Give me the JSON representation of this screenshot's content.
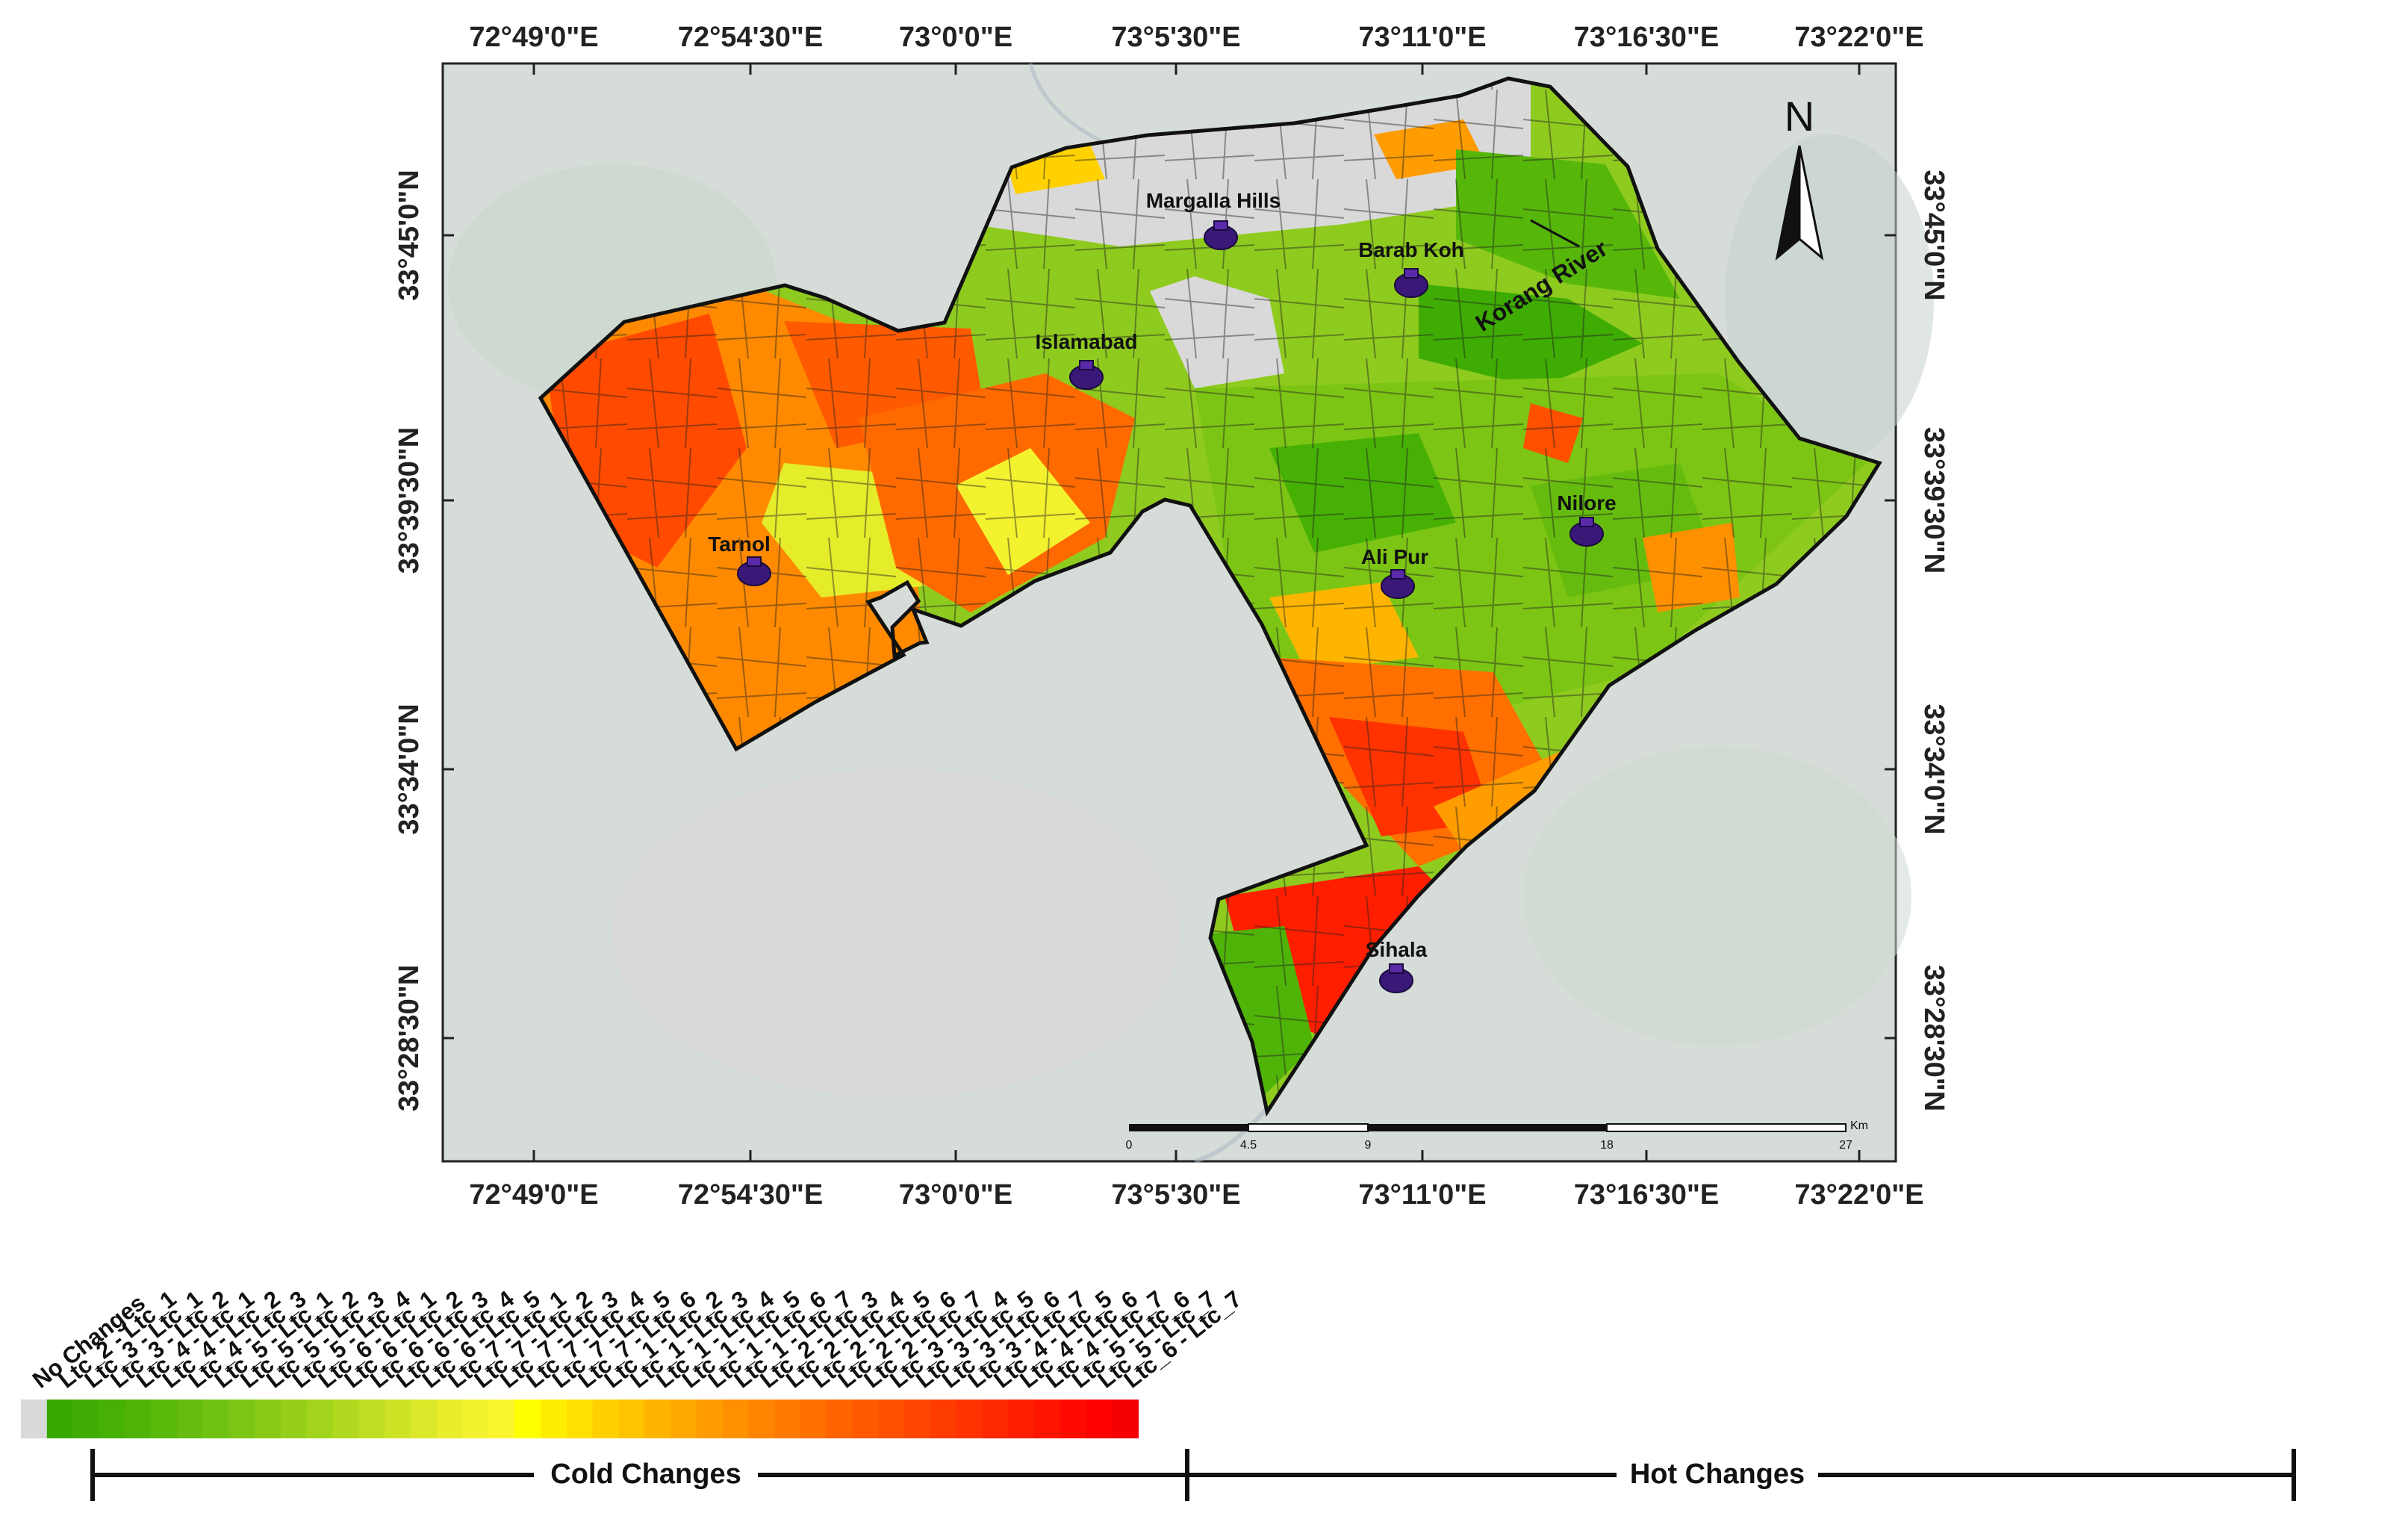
{
  "map": {
    "lon_ticks": [
      "72°49'0\"E",
      "72°54'30\"E",
      "73°0'0\"E",
      "73°5'30\"E",
      "73°11'0\"E",
      "73°16'30\"E",
      "73°22'0\"E"
    ],
    "lat_ticks": [
      "33°45'0\"N",
      "33°39'30\"N",
      "33°34'0\"N",
      "33°28'30\"N"
    ],
    "north_label": "N",
    "river_label": "Korang River",
    "places": [
      {
        "name": "Margalla Hills"
      },
      {
        "name": "Barab Koh"
      },
      {
        "name": "Islamabad"
      },
      {
        "name": "Tarnol"
      },
      {
        "name": "Nilore"
      },
      {
        "name": "Ali Pur"
      },
      {
        "name": "Sihala"
      }
    ],
    "scale_bar": {
      "unit": "Km",
      "ticks": [
        "0",
        "4.5",
        "9",
        "18",
        "27"
      ]
    }
  },
  "legend": {
    "categories": [
      "No Changes",
      "Ltc_2 - Ltc_1",
      "Ltc_3 - Ltc_1",
      "Ltc_3 - Ltc_2",
      "Ltc_4 - Ltc_1",
      "Ltc_4 - Ltc_2",
      "Ltc_4 - Ltc_3",
      "Ltc_5 - Ltc_1",
      "Ltc_5 - Ltc_2",
      "Ltc_5 - Ltc_3",
      "Ltc_5 - Ltc_4",
      "Ltc_6 - Ltc_1",
      "Ltc_6 - Ltc_2",
      "Ltc_6 - Ltc_3",
      "Ltc_6 - Ltc_4",
      "Ltc_6 - Ltc_5",
      "Ltc_7 - Ltc_1",
      "Ltc_7 - Ltc_2",
      "Ltc_7 - Ltc_3",
      "Ltc_7 - Ltc_4",
      "Ltc_7 - Ltc_5",
      "Ltc_7 - Ltc_6",
      "Ltc_1 - Ltc_2",
      "Ltc_1 - Ltc_3",
      "Ltc_1 - Ltc_4",
      "Ltc_1 - Ltc_5",
      "Ltc_1 - Ltc_6",
      "Ltc_1 - Ltc_7",
      "Ltc_2 - Ltc_3",
      "Ltc_2 - Ltc_4",
      "Ltc_2 - Ltc_5",
      "Ltc_2 - Ltc_6",
      "Ltc_2 - Ltc_7",
      "Ltc_3 - Ltc_4",
      "Ltc_3 - Ltc_5",
      "Ltc_3 - Ltc_6",
      "Ltc_3 - Ltc_7",
      "Ltc_4 - Ltc_5",
      "Ltc_4 - Ltc_6",
      "Ltc_4 - Ltc_7",
      "Ltc_5 - Ltc_6",
      "Ltc_5 - Ltc_7",
      "Ltc_6 - Ltc_7"
    ],
    "colors": [
      "#d9d9d9",
      "#38a800",
      "#3fac03",
      "#47b005",
      "#50b408",
      "#5ab80b",
      "#65bc0e",
      "#70c111",
      "#7cc514",
      "#89ca17",
      "#96cf1a",
      "#a3d41d",
      "#b1d920",
      "#bfde23",
      "#cde326",
      "#dbe829",
      "#e8ed2c",
      "#f3f22e",
      "#fbf52e",
      "#ffff00",
      "#ffee00",
      "#ffe000",
      "#ffd100",
      "#ffc300",
      "#ffb500",
      "#ffa800",
      "#ff9c00",
      "#ff9000",
      "#ff8500",
      "#ff7a00",
      "#ff6f00",
      "#ff6400",
      "#ff5a00",
      "#ff5000",
      "#ff4600",
      "#ff3c00",
      "#ff3200",
      "#ff2800",
      "#ff1e00",
      "#ff1400",
      "#ff0a00",
      "#ff0000",
      "#f40000"
    ],
    "cold_label": "Cold Changes",
    "hot_label": "Hot Changes"
  }
}
